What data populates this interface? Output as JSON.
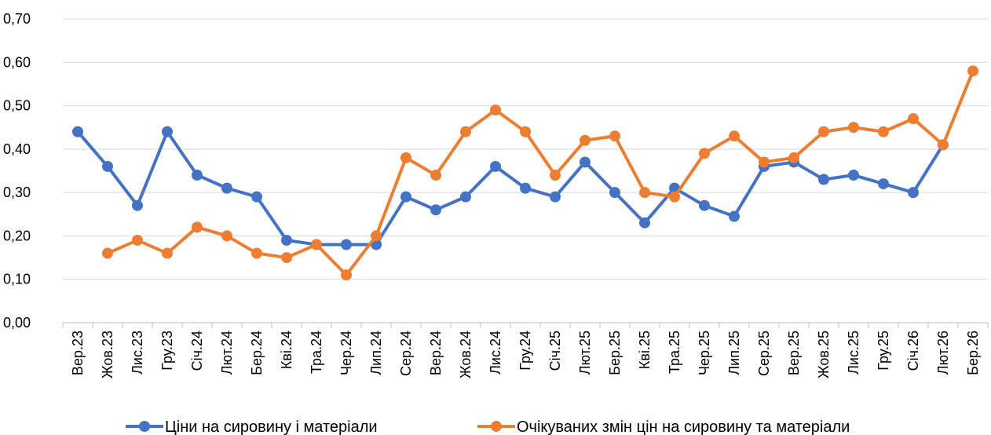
{
  "chart_data": {
    "type": "line",
    "title": "",
    "xlabel": "",
    "ylabel": "",
    "ylim": [
      0,
      0.7
    ],
    "ytick_step": 0.1,
    "y_tick_labels": [
      "0,00",
      "0,10",
      "0,20",
      "0,30",
      "0,40",
      "0,50",
      "0,60",
      "0,70"
    ],
    "grid": "horizontal",
    "legend_position": "bottom",
    "categories": [
      "Вер.23",
      "Жов.23",
      "Лис.23",
      "Гру.23",
      "Січ.24",
      "Лют.24",
      "Бер.24",
      "Кві.24",
      "Тра.24",
      "Чер.24",
      "Лип.24",
      "Сер.24",
      "Вер.24",
      "Жов.24",
      "Лис.24",
      "Гру.24",
      "Січ.25",
      "Лют.25",
      "Бер.25",
      "Кві.25",
      "Тра.25",
      "Чер.25",
      "Лип.25",
      "Сер.25",
      "Вер.25",
      "Жов.25",
      "Лис.25",
      "Гру.25",
      "Січ.26",
      "Лют.26",
      "Бер.26"
    ],
    "series": [
      {
        "name": "Ціни на сировину і матеріали",
        "color": "#4472C4",
        "values": [
          0.44,
          0.36,
          0.27,
          0.44,
          0.34,
          0.31,
          0.29,
          0.19,
          0.18,
          0.18,
          0.18,
          0.29,
          0.26,
          0.29,
          0.36,
          0.31,
          0.29,
          0.37,
          0.3,
          0.23,
          0.31,
          0.27,
          0.245,
          0.36,
          0.37,
          0.33,
          0.34,
          0.32,
          0.3,
          0.41,
          null
        ]
      },
      {
        "name": "Очікуваних змін цін на сировину та матеріали",
        "color": "#ED7D31",
        "values": [
          null,
          0.16,
          0.19,
          0.16,
          0.22,
          0.2,
          0.16,
          0.15,
          0.18,
          0.11,
          0.2,
          0.38,
          0.34,
          0.44,
          0.49,
          0.44,
          0.34,
          0.42,
          0.43,
          0.3,
          0.29,
          0.39,
          0.43,
          0.37,
          0.38,
          0.44,
          0.45,
          0.44,
          0.47,
          0.41,
          0.58
        ]
      }
    ]
  }
}
